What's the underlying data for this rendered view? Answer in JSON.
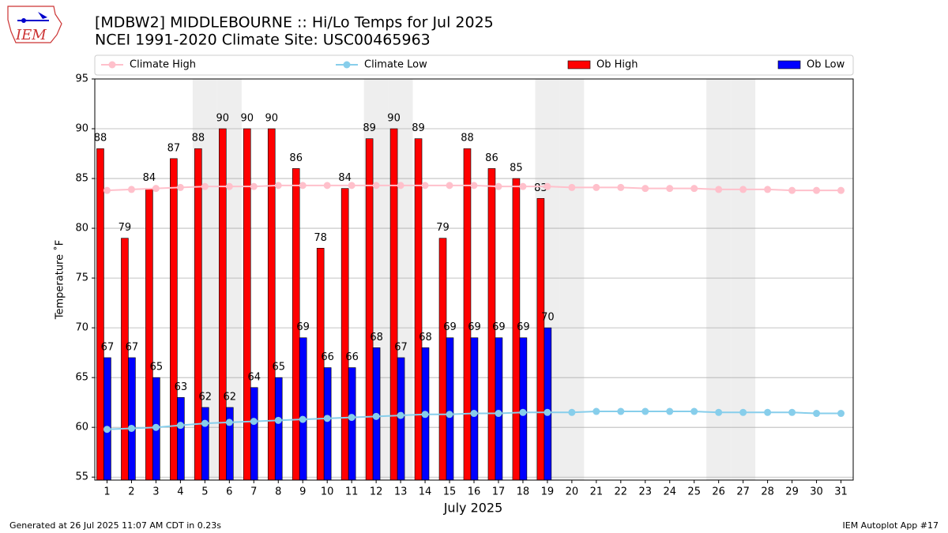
{
  "chart_data": {
    "type": "bar_line",
    "title": "[MDBW2] MIDDLEBOURNE :: Hi/Lo Temps for Jul 2025",
    "subtitle": "NCEI 1991-2020 Climate Site: USC00465963",
    "logo_text": "IEM",
    "xlabel": "July 2025",
    "ylabel": "Temperature ˚F",
    "footer_left": "Generated at 26 Jul 2025 11:07 AM CDT in 0.23s",
    "footer_right": "IEM Autoplot App #17",
    "x": [
      1,
      2,
      3,
      4,
      5,
      6,
      7,
      8,
      9,
      10,
      11,
      12,
      13,
      14,
      15,
      16,
      17,
      18,
      19,
      20,
      21,
      22,
      23,
      24,
      25,
      26,
      27,
      28,
      29,
      30,
      31
    ],
    "xlim": [
      0.5,
      31.5
    ],
    "xticks": [
      1,
      2,
      3,
      4,
      5,
      6,
      7,
      8,
      9,
      10,
      11,
      12,
      13,
      14,
      15,
      16,
      17,
      18,
      19,
      20,
      21,
      22,
      23,
      24,
      25,
      26,
      27,
      28,
      29,
      30,
      31
    ],
    "ylim": [
      54.7,
      95
    ],
    "yticks": [
      55,
      60,
      65,
      70,
      75,
      80,
      85,
      90,
      95
    ],
    "grid": true,
    "weekend_shading": true,
    "series": [
      {
        "name": "Climate High",
        "kind": "line",
        "color": "#ffc0cb",
        "values": [
          83.8,
          83.9,
          84.0,
          84.1,
          84.2,
          84.2,
          84.2,
          84.3,
          84.3,
          84.3,
          84.3,
          84.3,
          84.3,
          84.3,
          84.3,
          84.3,
          84.2,
          84.2,
          84.2,
          84.1,
          84.1,
          84.1,
          84.0,
          84.0,
          84.0,
          83.9,
          83.9,
          83.9,
          83.8,
          83.8,
          83.8
        ]
      },
      {
        "name": "Climate Low",
        "kind": "line",
        "color": "#87ceeb",
        "values": [
          59.8,
          59.9,
          60.0,
          60.2,
          60.4,
          60.5,
          60.6,
          60.7,
          60.8,
          60.9,
          61.0,
          61.1,
          61.2,
          61.3,
          61.3,
          61.4,
          61.4,
          61.5,
          61.5,
          61.5,
          61.6,
          61.6,
          61.6,
          61.6,
          61.6,
          61.5,
          61.5,
          61.5,
          61.5,
          61.4,
          61.4
        ]
      },
      {
        "name": "Ob High",
        "kind": "bar",
        "color": "#ff0000",
        "values": [
          88,
          79,
          84,
          87,
          88,
          90,
          90,
          90,
          86,
          78,
          84,
          89,
          90,
          89,
          79,
          88,
          86,
          85,
          83,
          null,
          null,
          null,
          null,
          null,
          null,
          null,
          null,
          null,
          null,
          null,
          null
        ]
      },
      {
        "name": "Ob Low",
        "kind": "bar",
        "color": "#0000ff",
        "values": [
          67,
          67,
          65,
          63,
          62,
          62,
          64,
          65,
          69,
          66,
          66,
          68,
          67,
          68,
          69,
          69,
          69,
          69,
          70,
          null,
          null,
          null,
          null,
          null,
          null,
          null,
          null,
          null,
          null,
          null,
          null
        ]
      }
    ]
  }
}
